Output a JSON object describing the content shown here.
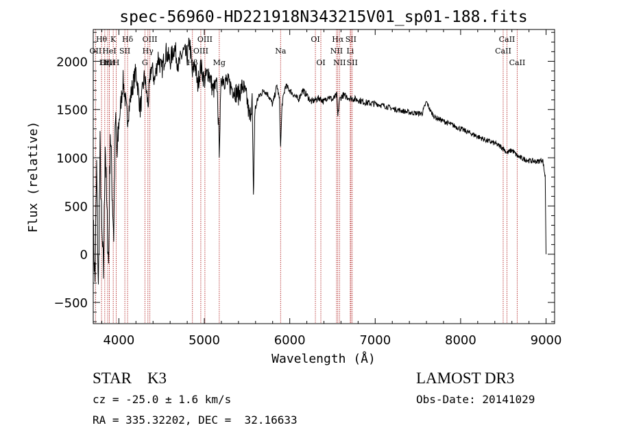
{
  "chart_data": {
    "type": "line",
    "title": "spec-56960-HD221918N343215V01_sp01-188.fits",
    "xlabel": "Wavelength (Å)",
    "ylabel": "Flux (relative)",
    "xlim": [
      3700,
      9100
    ],
    "ylim": [
      -720,
      2330
    ],
    "xticks": [
      4000,
      5000,
      6000,
      7000,
      8000,
      9000
    ],
    "yticks": [
      -500,
      0,
      500,
      1000,
      1500,
      2000
    ],
    "grid": false,
    "series": [
      {
        "name": "flux",
        "x": [
          3700,
          3720,
          3740,
          3760,
          3780,
          3800,
          3820,
          3840,
          3860,
          3880,
          3900,
          3920,
          3940,
          3960,
          3980,
          4000,
          4050,
          4100,
          4150,
          4200,
          4250,
          4300,
          4340,
          4380,
          4420,
          4460,
          4500,
          4550,
          4600,
          4650,
          4700,
          4750,
          4800,
          4830,
          4861,
          4890,
          4920,
          4960,
          5000,
          5050,
          5100,
          5150,
          5175,
          5200,
          5250,
          5300,
          5350,
          5400,
          5450,
          5500,
          5530,
          5560,
          5575,
          5590,
          5620,
          5650,
          5700,
          5750,
          5800,
          5850,
          5880,
          5893,
          5910,
          5950,
          6000,
          6050,
          6100,
          6150,
          6200,
          6250,
          6300,
          6350,
          6400,
          6450,
          6500,
          6550,
          6563,
          6580,
          6620,
          6700,
          6800,
          6900,
          7000,
          7100,
          7200,
          7300,
          7400,
          7500,
          7550,
          7600,
          7650,
          7700,
          7800,
          7900,
          8000,
          8100,
          8200,
          8300,
          8400,
          8498,
          8542,
          8600,
          8662,
          8700,
          8800,
          8900,
          8960,
          8990,
          9000
        ],
        "y": [
          300,
          -300,
          900,
          -400,
          1100,
          200,
          -200,
          1200,
          400,
          -100,
          1300,
          700,
          200,
          1400,
          1000,
          1350,
          1800,
          1400,
          1700,
          1900,
          1500,
          1850,
          1550,
          1950,
          1800,
          2050,
          1900,
          2100,
          2000,
          2150,
          1950,
          2100,
          2050,
          2200,
          1850,
          2000,
          1750,
          1950,
          1800,
          1900,
          1700,
          1750,
          1100,
          1850,
          1800,
          1750,
          1700,
          1650,
          1750,
          1600,
          1400,
          1600,
          550,
          1450,
          1600,
          1650,
          1700,
          1650,
          1550,
          1750,
          1600,
          1100,
          1550,
          1750,
          1700,
          1650,
          1600,
          1700,
          1650,
          1580,
          1600,
          1620,
          1580,
          1640,
          1600,
          1650,
          1420,
          1600,
          1650,
          1620,
          1600,
          1570,
          1560,
          1540,
          1510,
          1490,
          1470,
          1460,
          1460,
          1580,
          1480,
          1420,
          1380,
          1340,
          1300,
          1260,
          1220,
          1180,
          1150,
          1100,
          1050,
          1080,
          1020,
          1000,
          970,
          960,
          980,
          800,
          0
        ]
      }
    ],
    "lines": [
      {
        "label": "Hθ",
        "x": 3797,
        "row": 1
      },
      {
        "label": "OII",
        "x": 3727,
        "row": 2
      },
      {
        "label": "OIII",
        "x": 3869,
        "row": 3
      },
      {
        "label": "Hε",
        "x": 3889,
        "row": 3
      },
      {
        "label": "Hη",
        "x": 3835,
        "row": 3
      },
      {
        "label": "K",
        "x": 3934,
        "row": 1
      },
      {
        "label": "HeI",
        "x": 3889,
        "row": 2
      },
      {
        "label": "H",
        "x": 3969,
        "row": 3
      },
      {
        "label": "Hδ",
        "x": 4102,
        "row": 1
      },
      {
        "label": "SII",
        "x": 4070,
        "row": 2
      },
      {
        "label": "OIII",
        "x": 4363,
        "row": 1
      },
      {
        "label": "Hγ",
        "x": 4340,
        "row": 2
      },
      {
        "label": "G",
        "x": 4305,
        "row": 3
      },
      {
        "label": "OIII",
        "x": 5007,
        "row": 1
      },
      {
        "label": "OIII",
        "x": 4959,
        "row": 2
      },
      {
        "label": "Hβ",
        "x": 4861,
        "row": 3
      },
      {
        "label": "Mg",
        "x": 5175,
        "row": 3
      },
      {
        "label": "Na",
        "x": 5893,
        "row": 2
      },
      {
        "label": "OI",
        "x": 6300,
        "row": 1
      },
      {
        "label": "OI",
        "x": 6364,
        "row": 3
      },
      {
        "label": "Hα",
        "x": 6563,
        "row": 1
      },
      {
        "label": "NII",
        "x": 6548,
        "row": 2
      },
      {
        "label": "NII",
        "x": 6583,
        "row": 3
      },
      {
        "label": "SII",
        "x": 6716,
        "row": 1
      },
      {
        "label": "Li",
        "x": 6708,
        "row": 2
      },
      {
        "label": "SII",
        "x": 6731,
        "row": 3
      },
      {
        "label": "CaII",
        "x": 8542,
        "row": 1
      },
      {
        "label": "CaII",
        "x": 8498,
        "row": 2
      },
      {
        "label": "CaII",
        "x": 8662,
        "row": 3
      }
    ]
  },
  "info": {
    "classification": "STAR    K3",
    "survey": "LAMOST DR3",
    "cz": "cz = -25.0 ± 1.6 km/s",
    "obs_date": "Obs-Date: 20141029",
    "coords": "RA = 335.32202, DEC =  32.16633"
  }
}
